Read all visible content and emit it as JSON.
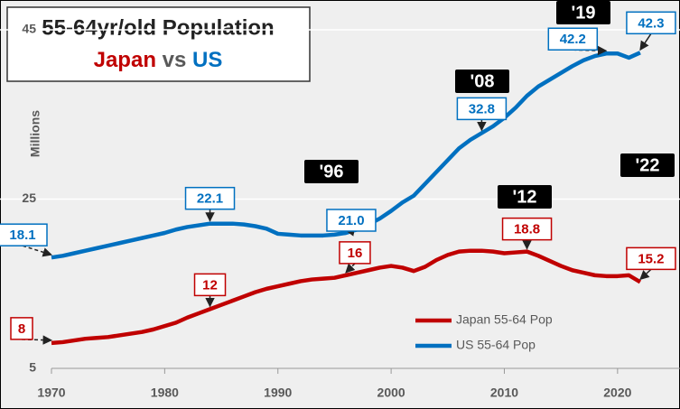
{
  "chart_data": {
    "type": "line",
    "title": "55-64yr/old Population",
    "subtitle": [
      "Japan",
      "vs",
      "US"
    ],
    "y_label": "Millions",
    "x": [
      1970,
      1971,
      1972,
      1973,
      1974,
      1975,
      1976,
      1977,
      1978,
      1979,
      1980,
      1981,
      1982,
      1983,
      1984,
      1985,
      1986,
      1987,
      1988,
      1989,
      1990,
      1991,
      1992,
      1993,
      1994,
      1995,
      1996,
      1997,
      1998,
      1999,
      2000,
      2001,
      2002,
      2003,
      2004,
      2005,
      2006,
      2007,
      2008,
      2009,
      2010,
      2011,
      2012,
      2013,
      2014,
      2015,
      2016,
      2017,
      2018,
      2019,
      2020,
      2021,
      2022
    ],
    "series": [
      {
        "name": "Japan 55-64 Pop",
        "color": "#c00000",
        "values": [
          8.0,
          8.1,
          8.3,
          8.5,
          8.6,
          8.7,
          8.9,
          9.1,
          9.3,
          9.6,
          10.0,
          10.4,
          11.0,
          11.5,
          12.0,
          12.5,
          13.0,
          13.5,
          14.0,
          14.4,
          14.7,
          15.0,
          15.3,
          15.5,
          15.6,
          15.7,
          16.0,
          16.3,
          16.6,
          16.9,
          17.1,
          16.9,
          16.5,
          17.0,
          17.8,
          18.4,
          18.8,
          18.9,
          18.9,
          18.8,
          18.6,
          18.7,
          18.8,
          18.3,
          17.7,
          17.1,
          16.6,
          16.3,
          16.0,
          15.9,
          15.9,
          16.0,
          15.2
        ],
        "value_labels": [
          "8",
          null,
          null,
          null,
          null,
          null,
          null,
          null,
          null,
          null,
          null,
          null,
          null,
          null,
          "12",
          null,
          null,
          null,
          null,
          null,
          null,
          null,
          null,
          null,
          null,
          null,
          "16",
          null,
          null,
          null,
          null,
          null,
          null,
          null,
          null,
          null,
          null,
          null,
          null,
          null,
          null,
          null,
          "18.8",
          null,
          null,
          null,
          null,
          null,
          null,
          null,
          null,
          null,
          "15.2"
        ]
      },
      {
        "name": "US 55-64 Pop",
        "color": "#0070c0",
        "values": [
          18.1,
          18.3,
          18.6,
          18.9,
          19.2,
          19.5,
          19.8,
          20.1,
          20.4,
          20.7,
          21.0,
          21.4,
          21.7,
          21.9,
          22.1,
          22.1,
          22.1,
          22.0,
          21.8,
          21.5,
          20.9,
          20.8,
          20.7,
          20.7,
          20.7,
          20.8,
          21.0,
          21.4,
          22.0,
          22.7,
          23.6,
          24.6,
          25.4,
          26.8,
          28.2,
          29.6,
          31.0,
          32.0,
          32.8,
          33.6,
          34.6,
          35.8,
          37.2,
          38.3,
          39.1,
          39.9,
          40.7,
          41.4,
          41.9,
          42.2,
          42.2,
          41.7,
          42.3
        ],
        "value_labels": [
          "18.1",
          null,
          null,
          null,
          null,
          null,
          null,
          null,
          null,
          null,
          null,
          null,
          null,
          null,
          "22.1",
          null,
          null,
          null,
          null,
          null,
          null,
          null,
          null,
          null,
          null,
          null,
          "21.0",
          null,
          null,
          null,
          null,
          null,
          null,
          null,
          null,
          null,
          null,
          null,
          "32.8",
          null,
          null,
          null,
          null,
          null,
          null,
          null,
          null,
          null,
          null,
          "42.2",
          null,
          null,
          "42.3"
        ]
      }
    ],
    "year_labels": [
      "'96",
      "'08",
      "'12",
      "'19",
      "'22"
    ],
    "xlim": [
      1970,
      2024
    ],
    "xticks": [
      1970,
      1980,
      1990,
      2000,
      2010,
      2020
    ],
    "ylim": [
      5,
      45
    ],
    "yticks": [
      5,
      25,
      45
    ],
    "grid": true,
    "legend": "lower right"
  }
}
